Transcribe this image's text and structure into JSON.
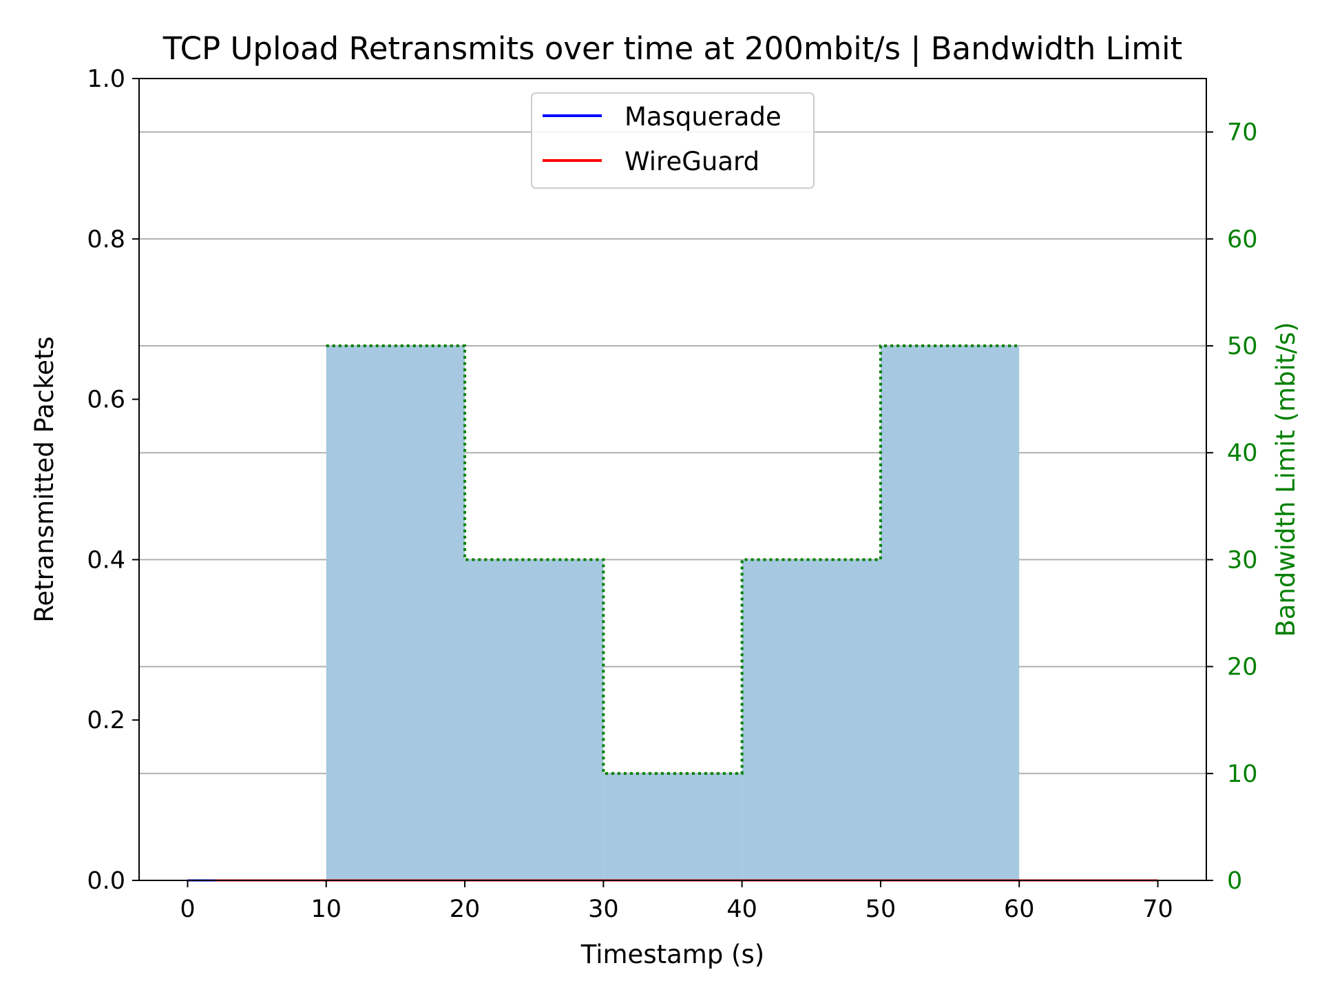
{
  "chart_data": {
    "type": "line",
    "title": "TCP Upload Retransmits over time at 200mbit/s | Bandwidth Limit",
    "xlabel": "Timestamp (s)",
    "ylabel": "Retransmitted Packets",
    "y2label": "Bandwidth Limit (mbit/s)",
    "xlim": [
      -3.5,
      73.5
    ],
    "ylim": [
      0,
      1.0
    ],
    "y2lim": [
      0,
      75
    ],
    "xticks": [
      0,
      10,
      20,
      30,
      40,
      50,
      60,
      70
    ],
    "yticks": [
      0.0,
      0.2,
      0.4,
      0.6,
      0.8,
      1.0
    ],
    "yticklabels": [
      "0.0",
      "0.2",
      "0.4",
      "0.6",
      "0.8",
      "1.0"
    ],
    "y2ticks": [
      0,
      10,
      20,
      30,
      40,
      50,
      60,
      70
    ],
    "grid": "horizontal, right axis",
    "legend_position": "upper center",
    "series": [
      {
        "name": "Masquerade",
        "color": "#0000ff",
        "x": [
          0,
          1,
          2
        ],
        "y": [
          0,
          0,
          0
        ]
      },
      {
        "name": "WireGuard",
        "color": "#ff0000",
        "x": [
          2,
          10,
          20,
          30,
          40,
          50,
          60,
          70
        ],
        "y": [
          0,
          0,
          0,
          0,
          0,
          0,
          0,
          0
        ]
      }
    ],
    "bandwidth_limit": {
      "color": "#008000",
      "fill_color": "#a6c8e0",
      "style": "dotted step",
      "segments": [
        {
          "start": 10,
          "end": 20,
          "value": 50
        },
        {
          "start": 20,
          "end": 30,
          "value": 30
        },
        {
          "start": 30,
          "end": 40,
          "value": 10
        },
        {
          "start": 40,
          "end": 50,
          "value": 30
        },
        {
          "start": 50,
          "end": 60,
          "value": 50
        }
      ]
    }
  }
}
